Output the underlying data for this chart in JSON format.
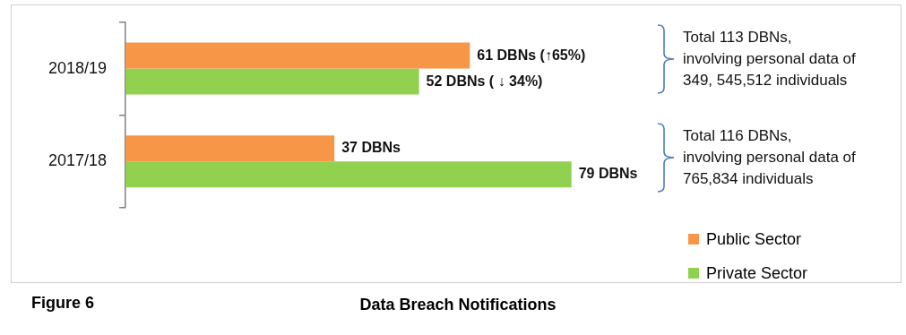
{
  "chart_data": {
    "type": "bar",
    "orientation": "horizontal",
    "title": "Data Breach Notifications",
    "categories": [
      "2018/19",
      "2017/18"
    ],
    "series": [
      {
        "name": "Public Sector",
        "color": "#f79646",
        "values": [
          61,
          37
        ],
        "value_labels": [
          "61 DBNs (↑65%)",
          "37 DBNs"
        ]
      },
      {
        "name": "Private Sector",
        "color": "#92d050",
        "values": [
          52,
          79
        ],
        "value_labels": [
          "52 DBNs ( ↓ 34%)",
          "79 DBNs"
        ]
      }
    ],
    "annotations": [
      "Total 113 DBNs,\ninvolving personal data of\n349, 545,512 individuals",
      "Total 116 DBNs,\ninvolving personal data of\n765,834 individuals",
      "Figure 6"
    ],
    "legend": "bottom right",
    "tick_labels": "y"
  }
}
